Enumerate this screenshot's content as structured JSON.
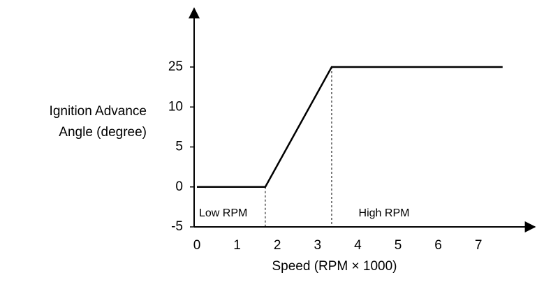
{
  "chart_data": {
    "type": "line",
    "x": [
      0,
      1.7,
      3.35,
      7.6
    ],
    "series": [
      {
        "values": [
          0,
          0,
          25,
          25
        ],
        "color": "#000000"
      }
    ],
    "xticks": [
      0,
      1,
      2,
      3,
      4,
      5,
      6,
      7
    ],
    "yticks": [
      -5,
      0,
      5,
      10,
      25
    ],
    "xlabel": "Speed (RPM × 1000)",
    "ylabel": [
      "Ignition Advance",
      "Angle (degree)"
    ],
    "annotations": [
      "Low RPM",
      "High RPM"
    ]
  }
}
